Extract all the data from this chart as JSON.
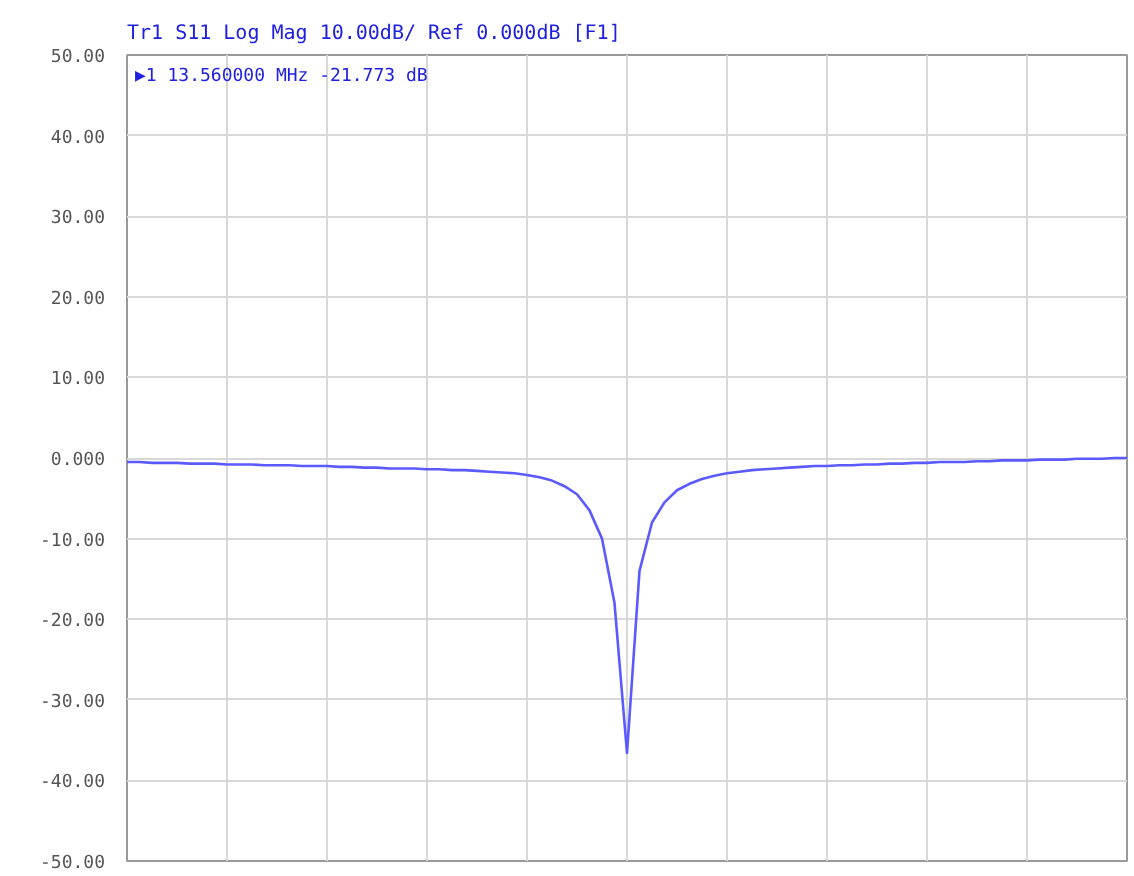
{
  "chart_data": {
    "type": "line",
    "title": "Tr1 S11 Log Mag 10.00dB/ Ref 0.000dB [F1]",
    "categories": [
      null,
      null,
      null,
      null,
      null,
      null,
      null,
      null,
      null,
      null,
      null,
      null,
      null,
      null,
      null,
      null,
      null,
      null,
      null,
      null,
      null,
      null,
      null,
      null,
      null,
      null,
      null,
      null,
      null,
      null,
      null,
      null,
      null,
      null,
      null,
      null,
      null,
      null,
      null,
      null,
      null,
      null,
      null,
      null,
      null,
      null,
      null,
      null,
      null,
      null,
      null,
      null,
      null,
      null,
      null,
      null,
      null,
      null,
      null,
      null,
      null,
      null,
      null,
      null,
      null,
      null,
      null,
      null,
      null,
      null,
      null,
      null,
      null,
      null,
      null,
      null,
      null,
      null,
      null,
      null,
      null
    ],
    "series": [
      {
        "color": "#5a5aff",
        "values": [
          -0.5,
          -0.5,
          -0.6,
          -0.6,
          -0.6,
          -0.7,
          -0.7,
          -0.7,
          -0.8,
          -0.8,
          -0.8,
          -0.9,
          -0.9,
          -0.9,
          -1.0,
          -1.0,
          -1.0,
          -1.1,
          -1.1,
          -1.2,
          -1.2,
          -1.3,
          -1.3,
          -1.3,
          -1.4,
          -1.4,
          -1.5,
          -1.5,
          -1.6,
          -1.7,
          -1.8,
          -1.9,
          -2.1,
          -2.4,
          -2.8,
          -3.5,
          -4.5,
          -6.5,
          -10,
          -18,
          -36.6,
          -14,
          -8,
          -5.5,
          -4,
          -3.2,
          -2.6,
          -2.2,
          -1.9,
          -1.7,
          -1.5,
          -1.4,
          -1.3,
          -1.2,
          -1.1,
          -1.0,
          -1.0,
          -0.9,
          -0.9,
          -0.8,
          -0.8,
          -0.7,
          -0.7,
          -0.6,
          -0.6,
          -0.5,
          -0.5,
          -0.5,
          -0.4,
          -0.4,
          -0.3,
          -0.3,
          -0.3,
          -0.2,
          -0.2,
          -0.2,
          -0.1,
          -0.1,
          -0.1,
          0.0,
          0.0
        ]
      }
    ],
    "ylim": [
      -50,
      50
    ],
    "yticks": [
      {
        "value": 50,
        "label": "50.00"
      },
      {
        "value": 40,
        "label": "40.00"
      },
      {
        "value": 30,
        "label": "30.00"
      },
      {
        "value": 20,
        "label": "20.00"
      },
      {
        "value": 10,
        "label": "10.00"
      },
      {
        "value": 0,
        "label": "0.000"
      },
      {
        "value": -10,
        "label": "-10.00"
      },
      {
        "value": -20,
        "label": "-20.00"
      },
      {
        "value": -30,
        "label": "-30.00"
      },
      {
        "value": -40,
        "label": "-40.00"
      },
      {
        "value": -50,
        "label": "-50.00"
      }
    ],
    "annotations": [
      "▶1  13.560000 MHz -21.773 dB"
    ],
    "grid": true,
    "tick_labels": "y",
    "marker": "none",
    "line_style": "solid"
  }
}
